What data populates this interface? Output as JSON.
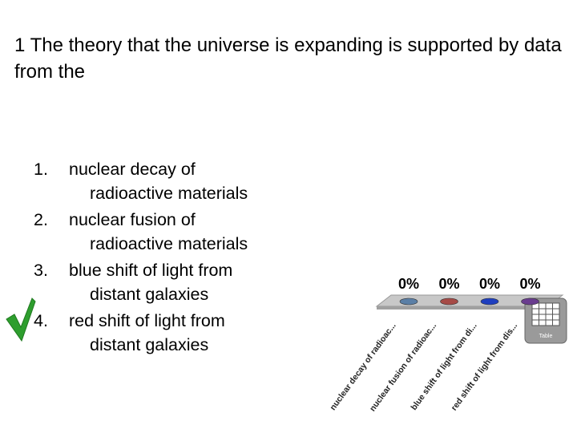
{
  "question": "1 The theory that the universe is expanding is supported by data from the",
  "answers": [
    {
      "number": "1.",
      "line1": "nuclear decay of",
      "line2": "radioactive materials"
    },
    {
      "number": "2.",
      "line1": "nuclear fusion of",
      "line2": "radioactive materials"
    },
    {
      "number": "3.",
      "line1": "blue shift of light from",
      "line2": "distant galaxies"
    },
    {
      "number": "4.",
      "line1": "red shift of light from",
      "line2": "distant galaxies"
    }
  ],
  "chart_data": {
    "type": "bar",
    "categories": [
      "nuclear decay of radioac...",
      "nuclear fusion of radioac...",
      "blue shift of light from di...",
      "red shift of light from dis..."
    ],
    "values": [
      0,
      0,
      0,
      0
    ],
    "value_labels": [
      "0%",
      "0%",
      "0%",
      "0%"
    ],
    "colors": [
      "#5b7fa6",
      "#a64b47",
      "#1f3fbf",
      "#6a3d8f"
    ]
  },
  "icon_label": "Table"
}
